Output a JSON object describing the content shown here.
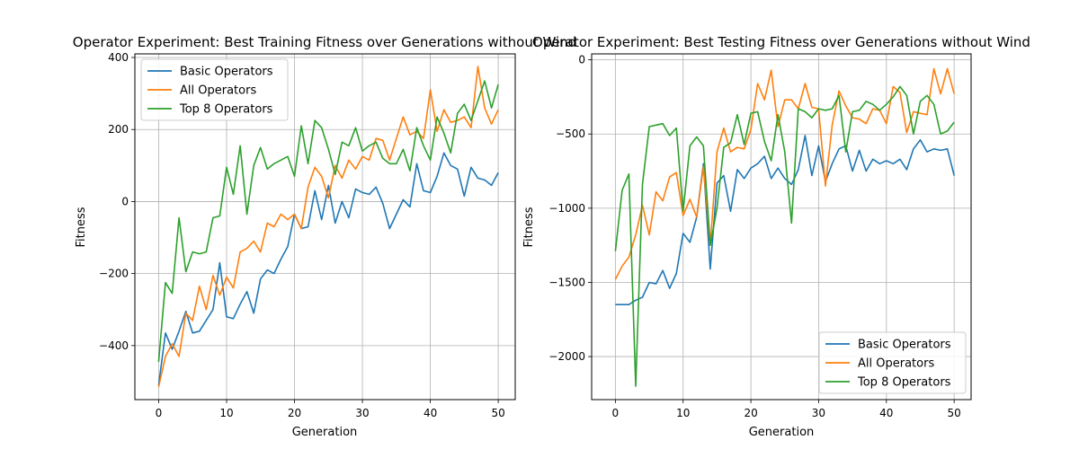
{
  "chart_data": [
    {
      "type": "line",
      "title": "Operator Experiment: Best Training Fitness over Generations without Wind",
      "xlabel": "Generation",
      "ylabel": "Fitness",
      "xlim": [
        -3.5,
        52.5
      ],
      "ylim": [
        -550,
        410
      ],
      "xticks": [
        0,
        10,
        20,
        30,
        40,
        50
      ],
      "yticks": [
        -400,
        -200,
        0,
        200,
        400
      ],
      "grid": true,
      "legend_position": "upper-left",
      "x": [
        0,
        1,
        2,
        3,
        4,
        5,
        6,
        7,
        8,
        9,
        10,
        11,
        12,
        13,
        14,
        15,
        16,
        17,
        18,
        19,
        20,
        21,
        22,
        23,
        24,
        25,
        26,
        27,
        28,
        29,
        30,
        31,
        32,
        33,
        34,
        35,
        36,
        37,
        38,
        39,
        40,
        41,
        42,
        43,
        44,
        45,
        46,
        47,
        48,
        49,
        50
      ],
      "series": [
        {
          "name": "Basic Operators",
          "color": "#1f77b4",
          "values": [
            -510,
            -365,
            -410,
            -360,
            -305,
            -365,
            -360,
            -330,
            -300,
            -170,
            -320,
            -325,
            -285,
            -250,
            -310,
            -215,
            -190,
            -200,
            -160,
            -125,
            -35,
            -75,
            -70,
            30,
            -50,
            45,
            -60,
            0,
            -45,
            35,
            25,
            20,
            40,
            -5,
            -75,
            -35,
            5,
            -15,
            105,
            30,
            25,
            70,
            135,
            100,
            90,
            15,
            95,
            65,
            60,
            45,
            80
          ]
        },
        {
          "name": "All Operators",
          "color": "#ff7f0e",
          "values": [
            -515,
            -430,
            -395,
            -430,
            -310,
            -330,
            -235,
            -300,
            -205,
            -260,
            -210,
            -240,
            -140,
            -130,
            -110,
            -140,
            -60,
            -70,
            -35,
            -50,
            -35,
            -75,
            40,
            95,
            70,
            10,
            100,
            65,
            115,
            90,
            125,
            115,
            175,
            170,
            115,
            175,
            235,
            185,
            195,
            175,
            310,
            195,
            255,
            220,
            225,
            235,
            205,
            375,
            260,
            215,
            255
          ]
        },
        {
          "name": "Top 8 Operators",
          "color": "#2ca02c",
          "values": [
            -445,
            -225,
            -255,
            -45,
            -195,
            -140,
            -145,
            -140,
            -45,
            -40,
            95,
            20,
            155,
            -35,
            100,
            150,
            90,
            105,
            115,
            125,
            70,
            210,
            105,
            225,
            205,
            145,
            75,
            165,
            155,
            205,
            140,
            155,
            165,
            120,
            105,
            105,
            145,
            85,
            205,
            155,
            115,
            235,
            190,
            135,
            245,
            270,
            225,
            280,
            335,
            260,
            325
          ]
        }
      ]
    },
    {
      "type": "line",
      "title": "Operator Experiment: Best Testing Fitness over Generations without Wind",
      "xlabel": "Generation",
      "ylabel": "Fitness",
      "xlim": [
        -3.5,
        52.5
      ],
      "ylim": [
        -2290,
        40
      ],
      "xticks": [
        0,
        10,
        20,
        30,
        40,
        50
      ],
      "yticks": [
        -2000,
        -1500,
        -1000,
        -500,
        0
      ],
      "grid": true,
      "legend_position": "lower-right",
      "x": [
        0,
        1,
        2,
        3,
        4,
        5,
        6,
        7,
        8,
        9,
        10,
        11,
        12,
        13,
        14,
        15,
        16,
        17,
        18,
        19,
        20,
        21,
        22,
        23,
        24,
        25,
        26,
        27,
        28,
        29,
        30,
        31,
        32,
        33,
        34,
        35,
        36,
        37,
        38,
        39,
        40,
        41,
        42,
        43,
        44,
        45,
        46,
        47,
        48,
        49,
        50
      ],
      "series": [
        {
          "name": "Basic Operators",
          "color": "#1f77b4",
          "values": [
            -1650,
            -1650,
            -1650,
            -1620,
            -1600,
            -1500,
            -1510,
            -1420,
            -1540,
            -1440,
            -1170,
            -1230,
            -1060,
            -700,
            -1410,
            -830,
            -780,
            -1020,
            -740,
            -800,
            -730,
            -700,
            -650,
            -800,
            -730,
            -800,
            -840,
            -740,
            -510,
            -780,
            -580,
            -820,
            -700,
            -600,
            -580,
            -750,
            -610,
            -750,
            -670,
            -700,
            -680,
            -700,
            -670,
            -740,
            -600,
            -540,
            -620,
            -600,
            -610,
            -600,
            -780
          ]
        },
        {
          "name": "All Operators",
          "color": "#ff7f0e",
          "values": [
            -1480,
            -1390,
            -1330,
            -1180,
            -980,
            -1180,
            -890,
            -950,
            -790,
            -760,
            -1050,
            -940,
            -1060,
            -720,
            -1250,
            -620,
            -460,
            -620,
            -590,
            -600,
            -470,
            -160,
            -270,
            -70,
            -450,
            -270,
            -270,
            -330,
            -160,
            -320,
            -330,
            -850,
            -440,
            -210,
            -310,
            -390,
            -400,
            -430,
            -330,
            -340,
            -430,
            -180,
            -220,
            -490,
            -350,
            -360,
            -370,
            -60,
            -230,
            -60,
            -230
          ]
        },
        {
          "name": "Top 8 Operators",
          "color": "#2ca02c",
          "values": [
            -1290,
            -880,
            -770,
            -2200,
            -840,
            -450,
            -440,
            -430,
            -510,
            -460,
            -1020,
            -580,
            -520,
            -580,
            -1250,
            -1000,
            -590,
            -560,
            -370,
            -570,
            -360,
            -350,
            -550,
            -680,
            -370,
            -620,
            -1100,
            -330,
            -350,
            -390,
            -330,
            -340,
            -330,
            -240,
            -620,
            -350,
            -340,
            -280,
            -300,
            -340,
            -300,
            -250,
            -180,
            -240,
            -500,
            -280,
            -240,
            -300,
            -500,
            -480,
            -420
          ]
        }
      ]
    }
  ]
}
